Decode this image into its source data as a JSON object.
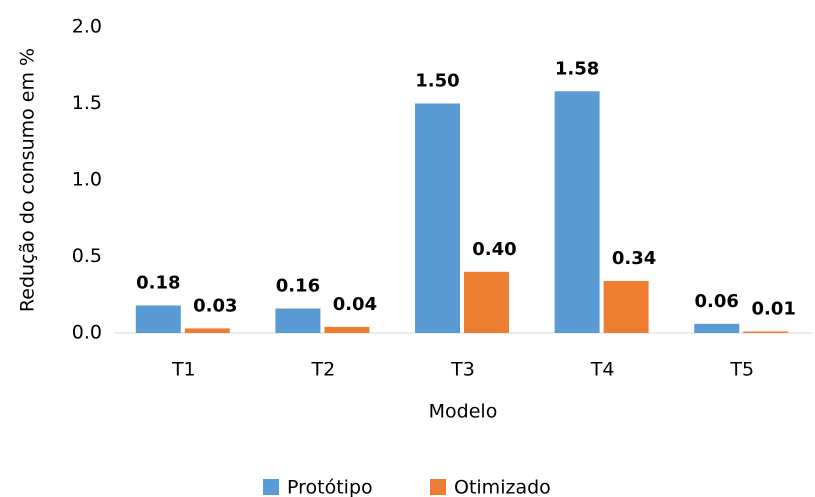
{
  "chart_data": {
    "type": "bar",
    "categories": [
      "T1",
      "T2",
      "T3",
      "T4",
      "T5"
    ],
    "series": [
      {
        "name": "Protótipo",
        "color": "#5b9bd5",
        "values": [
          0.18,
          0.16,
          1.5,
          1.58,
          0.06
        ],
        "value_labels": [
          "0.18",
          "0.16",
          "1.50",
          "1.58",
          "0.06"
        ]
      },
      {
        "name": "Otimizado",
        "color": "#ed7d31",
        "values": [
          0.03,
          0.04,
          0.4,
          0.34,
          0.01
        ],
        "value_labels": [
          "0.03",
          "0.04",
          "0.40",
          "0.34",
          "0.01"
        ]
      }
    ],
    "ylim": [
      0,
      2
    ],
    "yticks": [
      {
        "value": 0,
        "label": "0.0"
      },
      {
        "value": 0.5,
        "label": "0.5"
      },
      {
        "value": 1,
        "label": "1.0"
      },
      {
        "value": 1.5,
        "label": "1.5"
      },
      {
        "value": 2,
        "label": "2.0"
      }
    ],
    "ylabel": "Redução do consumo em %",
    "xlabel": "Modelo",
    "legend": "bottom"
  }
}
